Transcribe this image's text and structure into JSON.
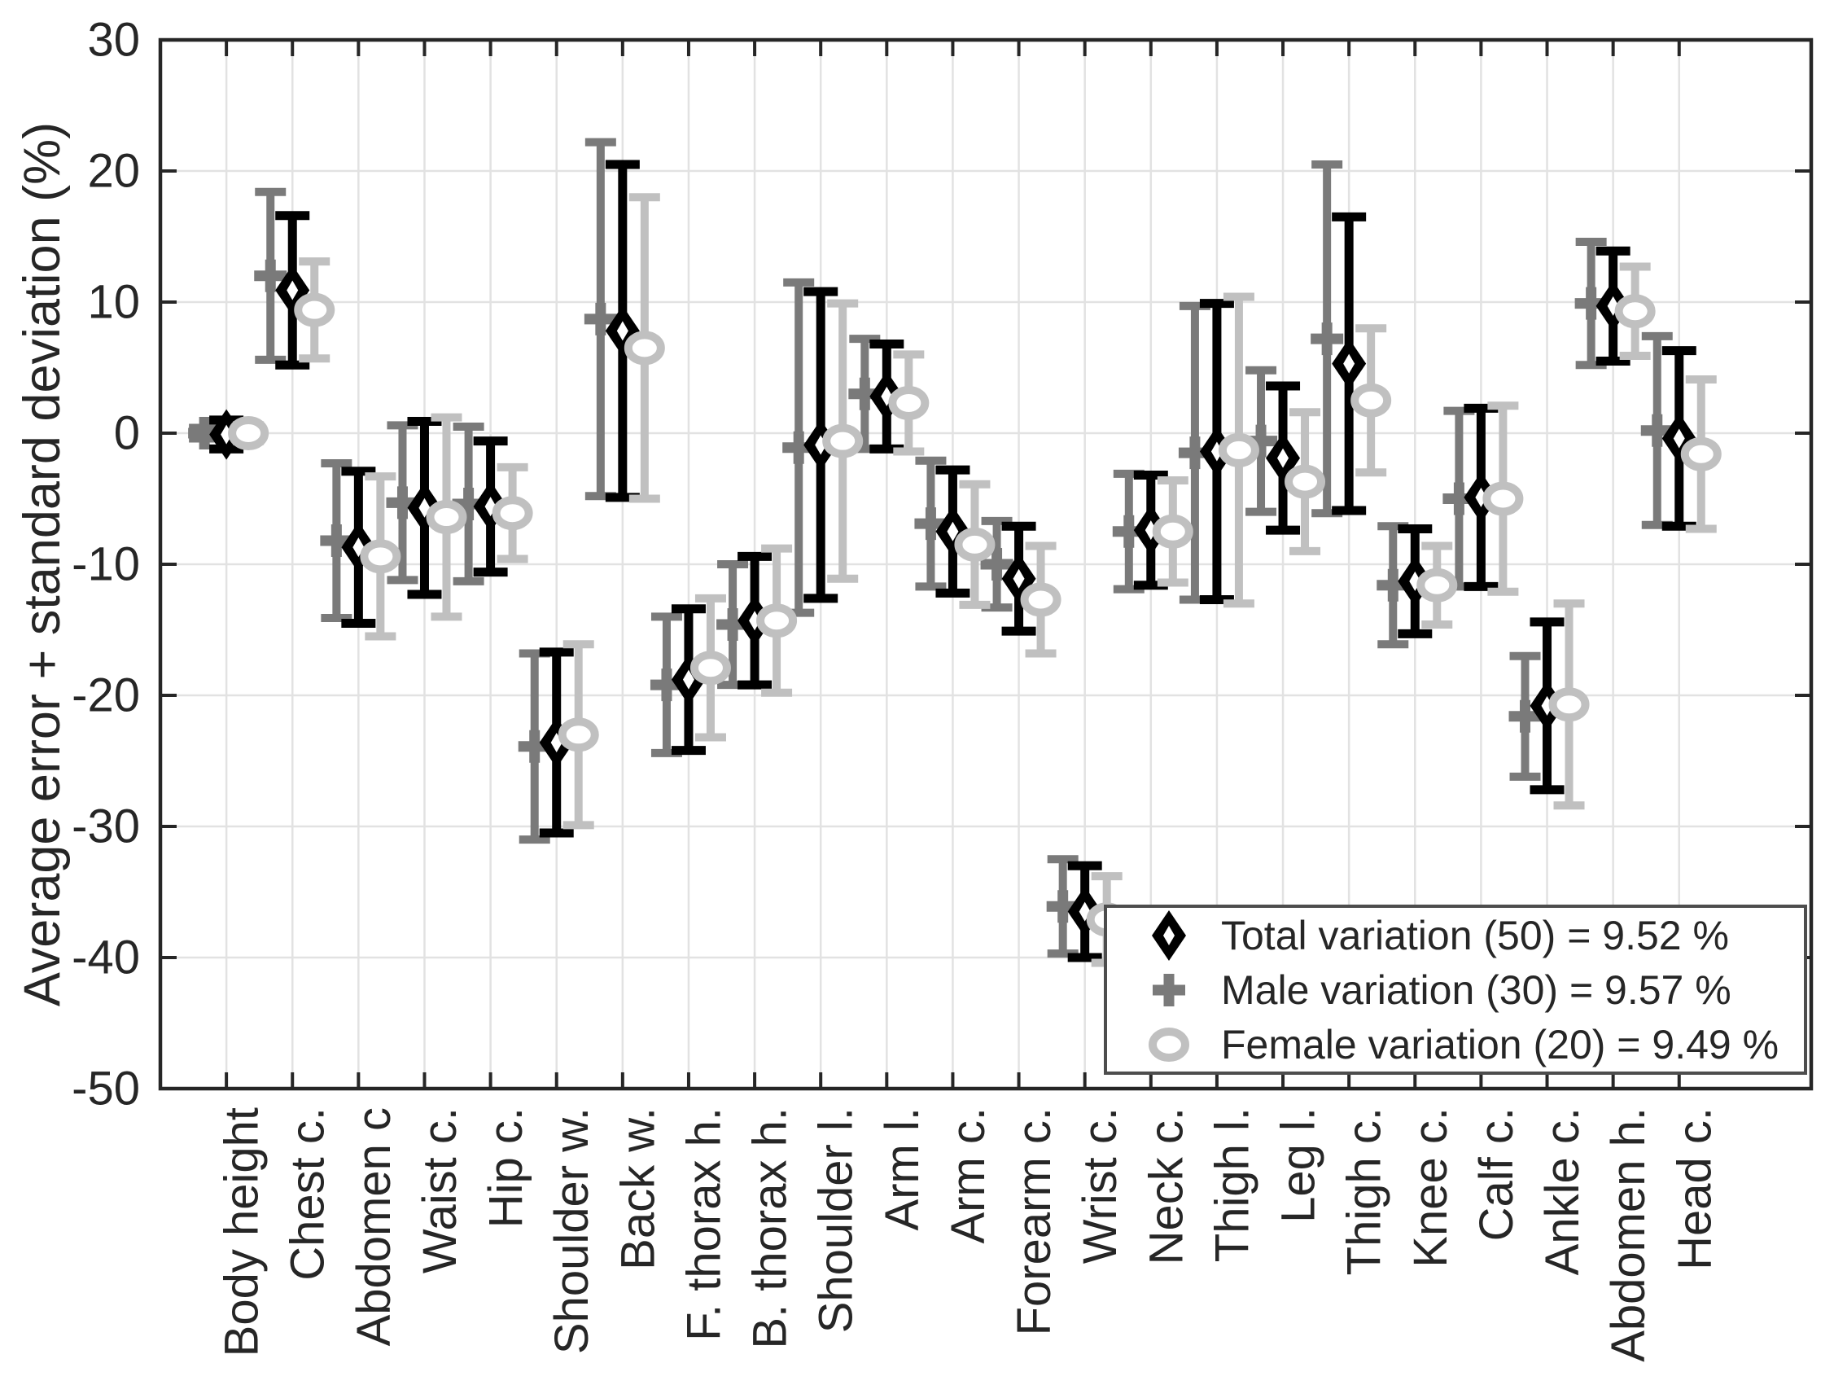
{
  "figure": {
    "background": "#ffffff",
    "axis_color": "#262626",
    "grid_color": "#e2e2e2",
    "text_color": "#262626",
    "legend_border_color": "#4d4d4d"
  },
  "chart_data": {
    "type": "errorbar",
    "title": "",
    "xlabel": "",
    "ylabel": "Average error + standard deviation (%)",
    "ylim": [
      -50,
      30
    ],
    "yticks": [
      30,
      20,
      10,
      0,
      -10,
      -20,
      -30,
      -40,
      -50
    ],
    "ytick_labels": [
      "30",
      "20",
      "10",
      "0",
      "-10",
      "-20",
      "-30",
      "-40",
      "-50"
    ],
    "grid": true,
    "legend_position": "inside-bottom-right",
    "categories": [
      "Body height",
      "Chest c.",
      "Abdomen c",
      "Waist c.",
      "Hip c.",
      "Shoulder w.",
      "Back w.",
      "F. thorax h.",
      "B. thorax h.",
      "Shoulder l.",
      "Arm l.",
      "Arm c.",
      "Forearm c.",
      "Wrist c.",
      "Neck c.",
      "Thigh l.",
      "Leg l.",
      "Thigh c.",
      "Knee c.",
      "Calf c.",
      "Ankle c.",
      "Abdomen h.",
      "Head c."
    ],
    "series": [
      {
        "name": "Total variation (50) = 9.52 %",
        "marker": "diamond-icon",
        "color": "#000000",
        "means": [
          -0.1,
          10.9,
          -8.7,
          -5.7,
          -5.6,
          -23.6,
          7.8,
          -18.8,
          -14.3,
          -0.9,
          2.8,
          -7.5,
          -11.1,
          -36.5,
          -7.4,
          -1.4,
          -1.9,
          5.3,
          -11.3,
          -4.9,
          -20.8,
          9.7,
          -0.4
        ],
        "sds": [
          1.1,
          5.7,
          5.8,
          6.6,
          5.0,
          6.9,
          12.7,
          5.4,
          4.9,
          11.7,
          4.0,
          4.7,
          4.0,
          3.5,
          4.2,
          11.3,
          5.5,
          11.2,
          4.0,
          6.8,
          6.4,
          4.2,
          6.7
        ]
      },
      {
        "name": "Male variation (30) = 9.57 %",
        "marker": "plus-icon",
        "color": "#7a7a7a",
        "means": [
          0.0,
          12.0,
          -8.2,
          -5.3,
          -5.4,
          -23.9,
          8.7,
          -19.2,
          -14.6,
          -1.1,
          3.0,
          -6.9,
          -10.0,
          -36.1,
          -7.5,
          -1.5,
          -0.6,
          7.2,
          -11.6,
          -5.0,
          -21.6,
          9.9,
          0.2
        ],
        "sds": [
          0.4,
          6.4,
          5.9,
          5.9,
          5.9,
          7.1,
          13.5,
          5.2,
          4.6,
          12.6,
          4.2,
          4.8,
          3.3,
          3.6,
          4.4,
          11.2,
          5.4,
          13.3,
          4.5,
          6.7,
          4.6,
          4.7,
          7.2
        ]
      },
      {
        "name": "Female variation (20) = 9.49 %",
        "marker": "circle-icon",
        "color": "#c0c0c0",
        "means": [
          0.0,
          9.4,
          -9.4,
          -6.4,
          -6.1,
          -23.0,
          6.5,
          -17.9,
          -14.3,
          -0.6,
          2.3,
          -8.5,
          -12.7,
          -37.1,
          -7.5,
          -1.3,
          -3.7,
          2.5,
          -11.6,
          -5.0,
          -20.7,
          9.3,
          -1.6
        ],
        "sds": [
          0.6,
          3.7,
          6.1,
          7.6,
          3.5,
          6.9,
          11.5,
          5.3,
          5.5,
          10.5,
          3.7,
          4.6,
          4.1,
          3.3,
          3.9,
          11.7,
          5.3,
          5.5,
          3.0,
          7.1,
          7.7,
          3.4,
          5.7
        ]
      }
    ]
  }
}
